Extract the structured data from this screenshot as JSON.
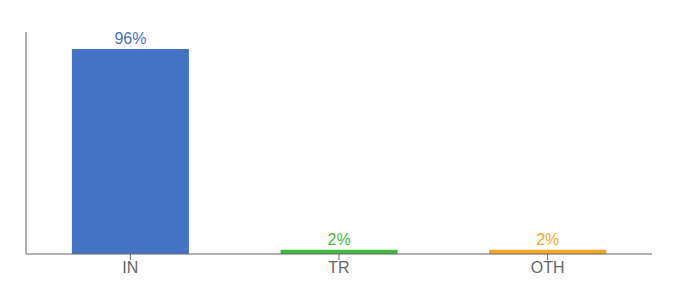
{
  "chart_data": {
    "type": "bar",
    "categories": [
      "IN",
      "TR",
      "OTH"
    ],
    "values": [
      96,
      2,
      2
    ],
    "value_labels": [
      "96%",
      "2%",
      "2%"
    ],
    "colors": [
      "#4472c4",
      "#3dbb3d",
      "#f5a623"
    ],
    "ylim": [
      0,
      104
    ],
    "tick_labels": "x",
    "grid": false,
    "data_labels": true
  }
}
